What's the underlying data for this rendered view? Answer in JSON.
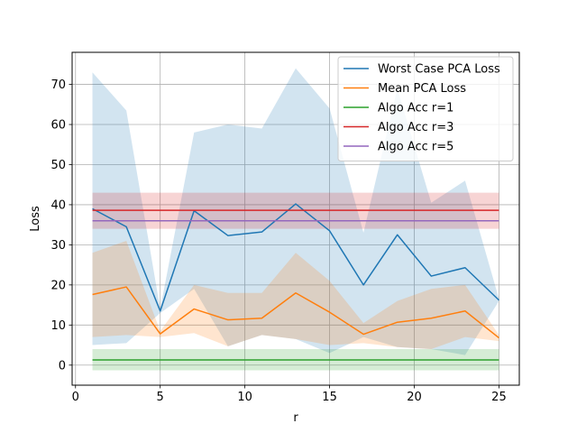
{
  "chart_data": {
    "type": "line",
    "title": "",
    "xlabel": "r",
    "ylabel": "Loss",
    "xlim": [
      -0.2,
      26.2
    ],
    "ylim": [
      -5,
      78
    ],
    "xticks": [
      0,
      5,
      10,
      15,
      20,
      25
    ],
    "yticks": [
      0,
      10,
      20,
      30,
      40,
      50,
      60,
      70
    ],
    "grid": true,
    "legend_position": "top-right",
    "x": [
      1,
      3,
      5,
      7,
      9,
      11,
      13,
      15,
      17,
      19,
      21,
      23,
      25
    ],
    "series": [
      {
        "name": "Worst Case PCA Loss",
        "color": "#1f77b4",
        "values": [
          39.0,
          34.5,
          13.5,
          38.5,
          32.3,
          33.2,
          40.2,
          33.5,
          20.0,
          32.5,
          22.2,
          24.3,
          16.2
        ],
        "band_upper": [
          73.0,
          63.5,
          14.0,
          58.0,
          60.0,
          59.0,
          74.0,
          64.0,
          33.0,
          69.0,
          40.5,
          46.0,
          16.5
        ],
        "band_lower": [
          5.0,
          5.5,
          13.0,
          19.0,
          4.7,
          7.5,
          6.5,
          3.0,
          7.0,
          4.5,
          4.0,
          2.5,
          16.0
        ]
      },
      {
        "name": "Mean PCA Loss",
        "color": "#ff7f0e",
        "values": [
          17.6,
          19.5,
          7.8,
          14.0,
          11.3,
          11.7,
          18.0,
          13.2,
          7.7,
          10.7,
          11.7,
          13.5,
          6.8
        ],
        "band_upper": [
          28.0,
          31.0,
          8.5,
          20.0,
          18.0,
          18.0,
          28.0,
          21.0,
          10.5,
          16.0,
          19.0,
          20.0,
          7.5
        ],
        "band_lower": [
          7.0,
          7.5,
          7.0,
          8.0,
          4.7,
          7.5,
          6.5,
          5.0,
          5.5,
          4.5,
          4.0,
          7.0,
          6.0
        ]
      },
      {
        "name": "Algo Acc r=1",
        "color": "#2ca02c",
        "values": [
          1.3,
          1.3,
          1.3,
          1.3,
          1.3,
          1.3,
          1.3,
          1.3,
          1.3,
          1.3,
          1.3,
          1.3,
          1.3
        ],
        "band_upper": [
          4.0,
          4.0,
          4.0,
          4.0,
          4.0,
          4.0,
          4.0,
          4.0,
          4.0,
          4.0,
          4.0,
          4.0,
          4.0
        ],
        "band_lower": [
          -1.3,
          -1.3,
          -1.3,
          -1.3,
          -1.3,
          -1.3,
          -1.3,
          -1.3,
          -1.3,
          -1.3,
          -1.3,
          -1.3,
          -1.3
        ]
      },
      {
        "name": "Algo Acc r=3",
        "color": "#d62728",
        "values": [
          38.6,
          38.6,
          38.6,
          38.6,
          38.6,
          38.6,
          38.6,
          38.6,
          38.6,
          38.6,
          38.6,
          38.6,
          38.6
        ],
        "band_upper": [
          43.0,
          43.0,
          43.0,
          43.0,
          43.0,
          43.0,
          43.0,
          43.0,
          43.0,
          43.0,
          43.0,
          43.0,
          43.0
        ],
        "band_lower": [
          34.0,
          34.0,
          34.0,
          34.0,
          34.0,
          34.0,
          34.0,
          34.0,
          34.0,
          34.0,
          34.0,
          34.0,
          34.0
        ]
      },
      {
        "name": "Algo Acc r=5",
        "color": "#9467bd",
        "values": [
          36.0,
          36.0,
          36.0,
          36.0,
          36.0,
          36.0,
          36.0,
          36.0,
          36.0,
          36.0,
          36.0,
          36.0,
          36.0
        ],
        "band_upper": null,
        "band_lower": null
      }
    ]
  }
}
